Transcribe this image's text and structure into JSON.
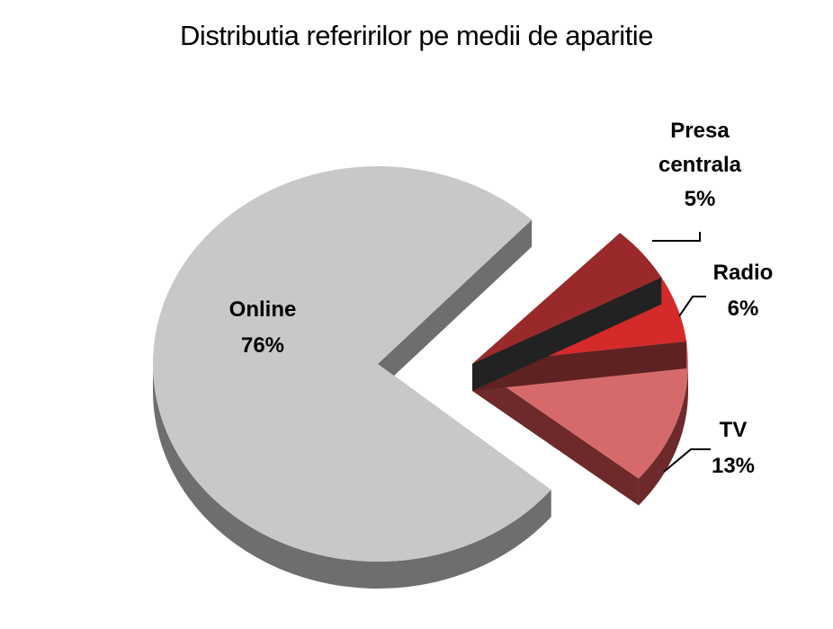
{
  "chart_data": {
    "type": "pie",
    "title": "Distributia referirilor pe medii de aparitie",
    "slices": [
      {
        "label_lines": [
          "Online",
          "76%"
        ],
        "value": 76,
        "color": "#c8c8c8",
        "side": "#6e6e6e",
        "exploded": false
      },
      {
        "label_lines": [
          "TV",
          "13%"
        ],
        "value": 13,
        "color": "#d66a6a",
        "side": "#6e2a2a",
        "exploded": true
      },
      {
        "label_lines": [
          "Radio",
          "6%"
        ],
        "value": 6,
        "color": "#d42a2a",
        "side": "#5e2222",
        "exploded": true
      },
      {
        "label_lines": [
          "Presa",
          "centrala",
          "5%"
        ],
        "value": 5,
        "color": "#9a2a2a",
        "side": "#222222",
        "exploded": true
      }
    ]
  }
}
